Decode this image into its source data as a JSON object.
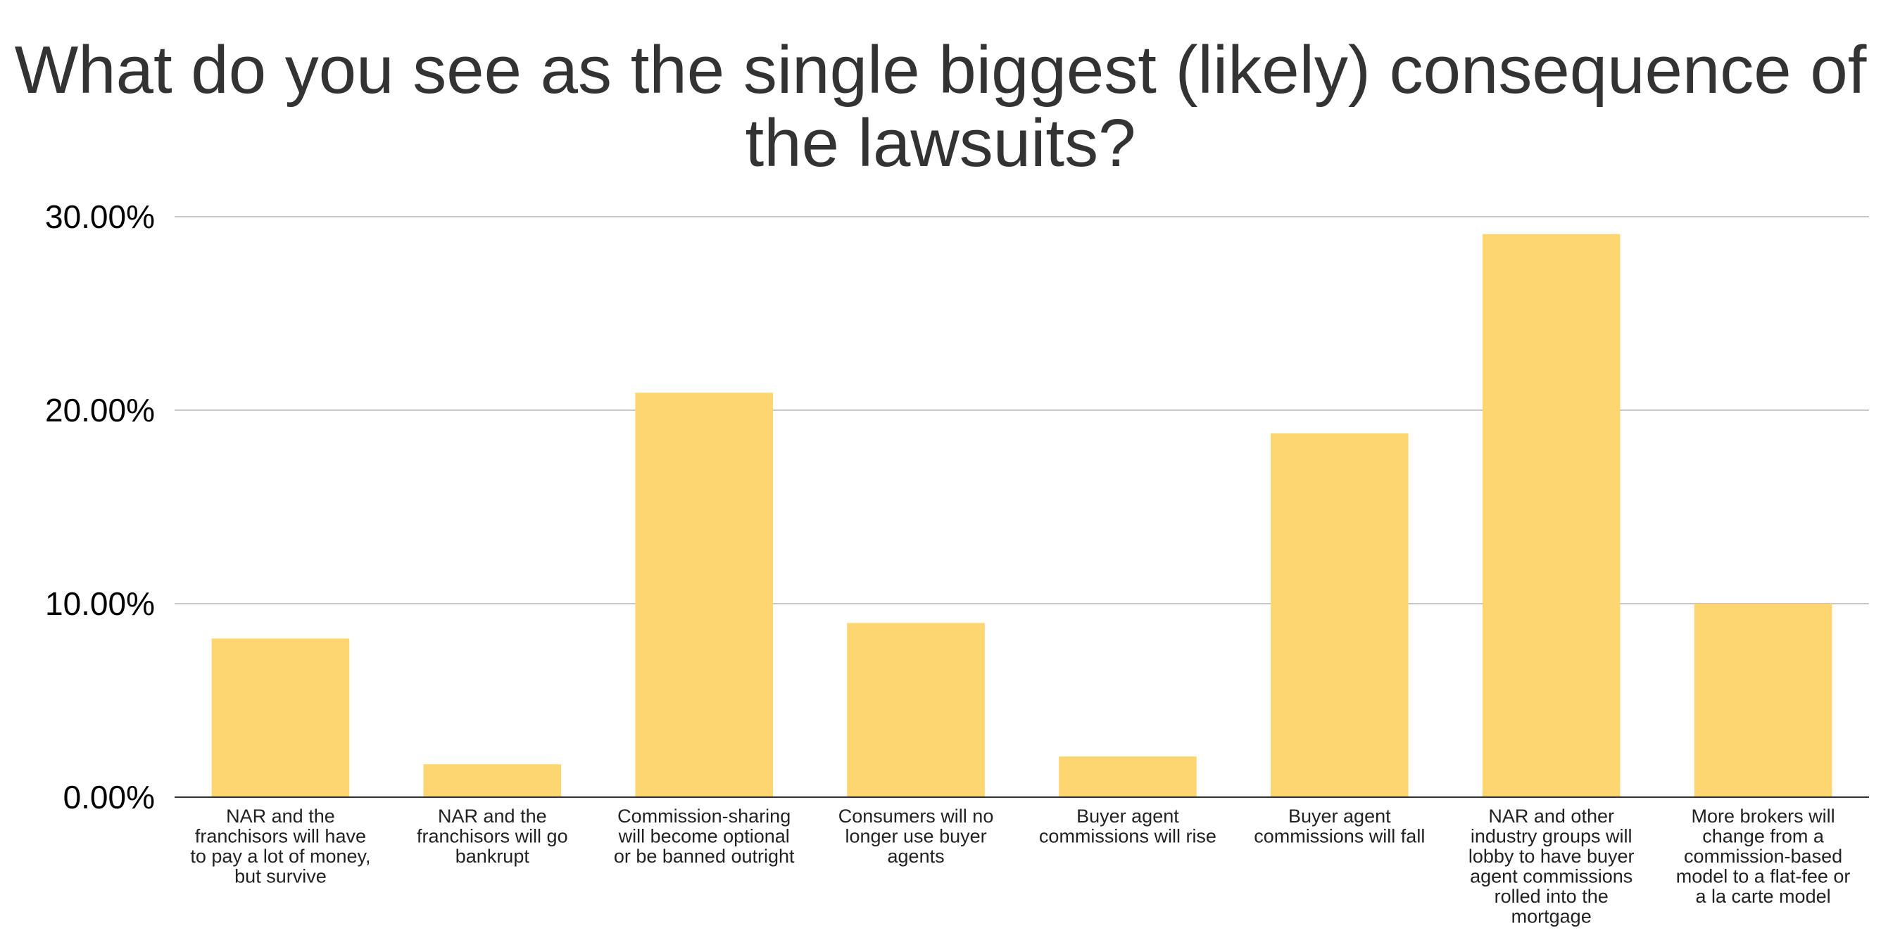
{
  "chart_data": {
    "type": "bar",
    "title": "What do you see as the single biggest (likely) consequence of the lawsuits?",
    "xlabel": "",
    "ylabel": "",
    "ylim": [
      0,
      30
    ],
    "yticks": [
      "0.00%",
      "10.00%",
      "20.00%",
      "30.00%"
    ],
    "ytick_values": [
      0,
      10,
      20,
      30
    ],
    "grid": true,
    "legend": "none",
    "bar_color": "#FDD571",
    "categories": [
      [
        "NAR and the",
        "franchisors will have",
        "to pay a lot of money,",
        "but survive"
      ],
      [
        "NAR and the",
        "franchisors will go",
        "bankrupt"
      ],
      [
        "Commission-sharing",
        "will become optional",
        "or be banned outright"
      ],
      [
        "Consumers will no",
        "longer use buyer",
        "agents"
      ],
      [
        "Buyer agent",
        "commissions will rise"
      ],
      [
        "Buyer agent",
        "commissions will fall"
      ],
      [
        "NAR and other",
        "industry groups will",
        "lobby to have buyer",
        "agent commissions",
        "rolled into the",
        "mortgage"
      ],
      [
        "More brokers will",
        "change from a",
        "commission-based",
        "model to a flat-fee or",
        "a la carte model"
      ]
    ],
    "values": [
      8.2,
      1.7,
      20.9,
      9.0,
      2.1,
      18.8,
      29.1,
      10.0
    ]
  }
}
